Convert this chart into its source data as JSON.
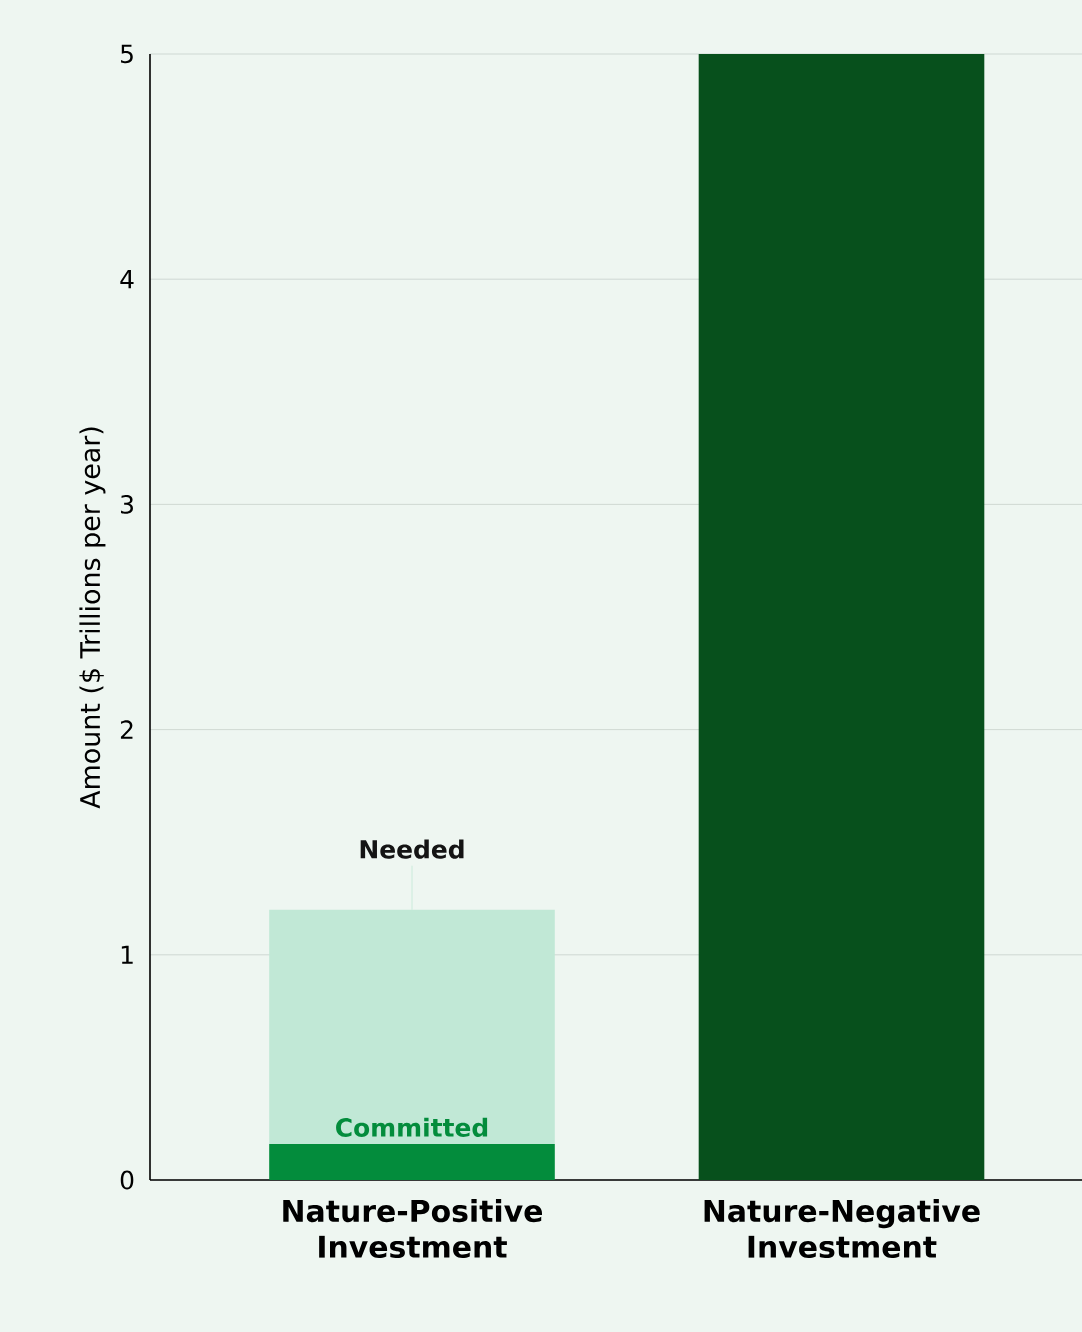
{
  "chart_data": {
    "type": "bar",
    "stacked": true,
    "categories": [
      "Nature-Positive Investment",
      "Nature-Negative Investment"
    ],
    "series": [
      {
        "name": "Committed",
        "color": "#038c3c",
        "values": [
          0.16,
          null
        ]
      },
      {
        "name": "Needed",
        "color": "#c1e8d6",
        "values": [
          1.04,
          null
        ]
      },
      {
        "color": "#07501c",
        "values": [
          null,
          5
        ]
      }
    ],
    "ylabel": "Amount ($ Trillions per year)",
    "ylim": [
      0,
      5
    ],
    "yticks": [
      0,
      1,
      2,
      3,
      4,
      5
    ],
    "grid": "y"
  }
}
